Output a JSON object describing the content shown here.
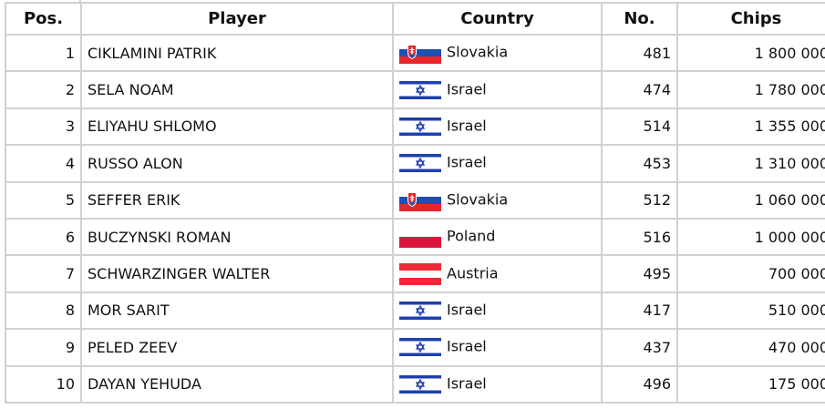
{
  "columns": {
    "pos": "Pos.",
    "player": "Player",
    "country": "Country",
    "no": "No.",
    "chips": "Chips"
  },
  "colors": {
    "slovakia": [
      "#ffffff",
      "#1e50b4",
      "#e8262a"
    ],
    "israel": [
      "#ffffff",
      "#1f3fb0"
    ],
    "poland": [
      "#ffffff",
      "#dc143c"
    ],
    "austria": [
      "#ed2939",
      "#ffffff",
      "#ed2939"
    ]
  },
  "rows": [
    {
      "pos": "1",
      "player": "CIKLAMINI PATRIK",
      "country": "Slovakia",
      "flag": "slovakia",
      "no": "481",
      "chips": "1 800 000"
    },
    {
      "pos": "2",
      "player": "SELA NOAM",
      "country": "Israel",
      "flag": "israel",
      "no": "474",
      "chips": "1 780 000"
    },
    {
      "pos": "3",
      "player": "ELIYAHU SHLOMO",
      "country": "Israel",
      "flag": "israel",
      "no": "514",
      "chips": "1 355 000"
    },
    {
      "pos": "4",
      "player": "RUSSO ALON",
      "country": "Israel",
      "flag": "israel",
      "no": "453",
      "chips": "1 310 000"
    },
    {
      "pos": "5",
      "player": "SEFFER ERIK",
      "country": "Slovakia",
      "flag": "slovakia",
      "no": "512",
      "chips": "1 060 000"
    },
    {
      "pos": "6",
      "player": "BUCZYNSKI ROMAN",
      "country": "Poland",
      "flag": "poland",
      "no": "516",
      "chips": "1 000 000"
    },
    {
      "pos": "7",
      "player": "SCHWARZINGER WALTER",
      "country": "Austria",
      "flag": "austria",
      "no": "495",
      "chips": "700 000"
    },
    {
      "pos": "8",
      "player": "MOR SARIT",
      "country": "Israel",
      "flag": "israel",
      "no": "417",
      "chips": "510 000"
    },
    {
      "pos": "9",
      "player": "PELED ZEEV",
      "country": "Israel",
      "flag": "israel",
      "no": "437",
      "chips": "470 000"
    },
    {
      "pos": "10",
      "player": "DAYAN YEHUDA",
      "country": "Israel",
      "flag": "israel",
      "no": "496",
      "chips": "175 000"
    }
  ]
}
